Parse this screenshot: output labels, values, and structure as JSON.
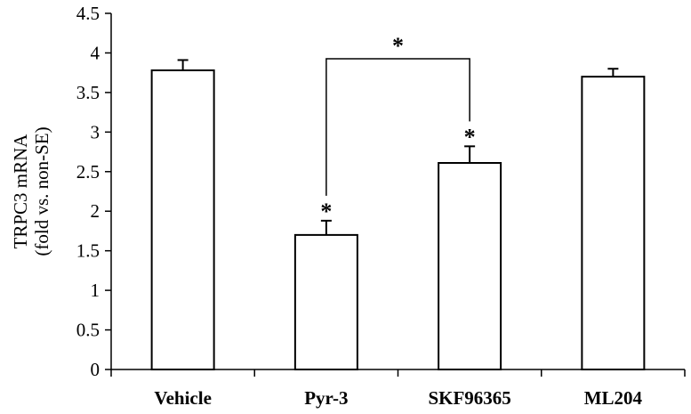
{
  "chart_data": {
    "type": "bar",
    "title": "",
    "xlabel": "",
    "ylabel_lines": [
      "TRPC3 mRNA",
      "(fold vs. non-SE)"
    ],
    "categories": [
      "Vehicle",
      "Pyr-3",
      "SKF96365",
      "ML204"
    ],
    "values": [
      3.78,
      1.7,
      2.61,
      3.7
    ],
    "errors": [
      0.13,
      0.18,
      0.21,
      0.1
    ],
    "ylim": [
      0,
      4.5
    ],
    "yticks": [
      "0",
      "0.5",
      "1",
      "1.5",
      "2",
      "2.5",
      "3",
      "3.5",
      "4",
      "4.5"
    ],
    "grid": false,
    "bar_fill": "#ffffff",
    "bar_stroke": "#000000",
    "significance": {
      "bar_markers": [
        {
          "category": "Pyr-3",
          "symbol": "*"
        },
        {
          "category": "SKF96365",
          "symbol": "*"
        }
      ],
      "bracket": {
        "from": "Pyr-3",
        "to": "SKF96365",
        "symbol": "*"
      }
    }
  }
}
